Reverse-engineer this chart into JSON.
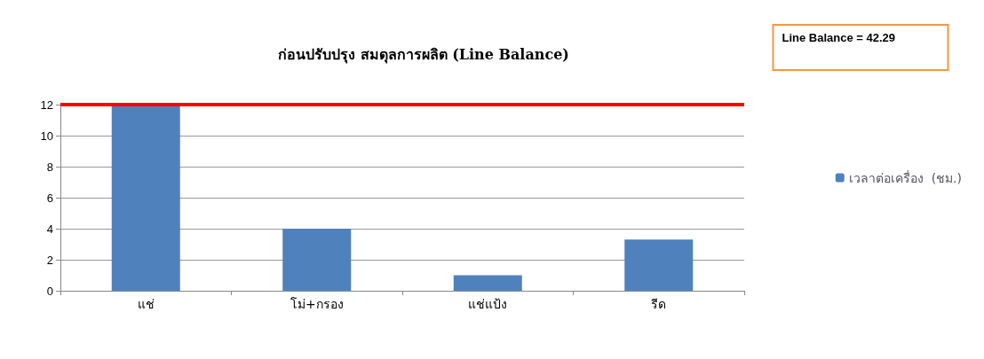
{
  "chart_data": {
    "type": "bar",
    "title": "ก่อนปรับปรุง สมดุลการผลิต (Line Balance)",
    "categories": [
      "แช่",
      "โม่+กรอง",
      "แช่แป้ง",
      "รีด"
    ],
    "series": [
      {
        "name": "เวลาต่อเครื่อง  (ชม.)",
        "color": "#4f81bd",
        "values": [
          12,
          4,
          1,
          3.3
        ]
      }
    ],
    "ylim": [
      0,
      12
    ],
    "yticks": [
      0,
      2,
      4,
      6,
      8,
      10,
      12
    ],
    "grid": "y",
    "legend": "right",
    "ref_lines": [
      {
        "axis": "y",
        "value": 12,
        "color": "#ff0000",
        "line_style": "solid"
      }
    ],
    "annotations": [
      "Line Balance = 42.29"
    ]
  }
}
